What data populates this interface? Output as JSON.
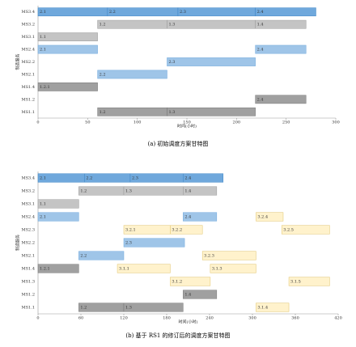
{
  "chart_data": [
    {
      "type": "gantt",
      "ylabel": "制造服务",
      "xlabel": "时间(小时)",
      "caption": "(a) 初始调度方案甘特图",
      "categories": [
        "MS3.4",
        "MS3.2",
        "MS3.1",
        "MS2.4",
        "MS2.2",
        "MS2.1",
        "MS1.4",
        "MS1.2",
        "MS1.1"
      ],
      "xlim": [
        0,
        300
      ],
      "xticks": [
        0,
        50,
        100,
        150,
        200,
        250,
        300
      ],
      "bars": [
        {
          "row": "MS3.4",
          "label": "2.1",
          "start": 0,
          "end": 70,
          "color": "#6fa8dc"
        },
        {
          "row": "MS3.4",
          "label": "2.2",
          "start": 70,
          "end": 141,
          "color": "#6fa8dc"
        },
        {
          "row": "MS3.4",
          "label": "2.3",
          "start": 141,
          "end": 219,
          "color": "#6fa8dc"
        },
        {
          "row": "MS3.4",
          "label": "2.4",
          "start": 219,
          "end": 280,
          "color": "#6fa8dc"
        },
        {
          "row": "MS3.2",
          "label": "1.2",
          "start": 60,
          "end": 130,
          "color": "#c4c4c4"
        },
        {
          "row": "MS3.2",
          "label": "1.3",
          "start": 130,
          "end": 219,
          "color": "#c4c4c4"
        },
        {
          "row": "MS3.2",
          "label": "1.4",
          "start": 219,
          "end": 270,
          "color": "#c4c4c4"
        },
        {
          "row": "MS3.1",
          "label": "1.1",
          "start": 0,
          "end": 60,
          "color": "#c4c4c4"
        },
        {
          "row": "MS2.4",
          "label": "2.1",
          "start": 0,
          "end": 60,
          "color": "#9fc5e8"
        },
        {
          "row": "MS2.4",
          "label": "2.4",
          "start": 219,
          "end": 270,
          "color": "#9fc5e8"
        },
        {
          "row": "MS2.2",
          "label": "2.3",
          "start": 130,
          "end": 219,
          "color": "#9fc5e8"
        },
        {
          "row": "MS2.1",
          "label": "2.2",
          "start": 60,
          "end": 130,
          "color": "#9fc5e8"
        },
        {
          "row": "MS1.4",
          "label": "1.2.1",
          "start": 0,
          "end": 60,
          "color": "#a0a0a0"
        },
        {
          "row": "MS1.2",
          "label": "2.4",
          "start": 219,
          "end": 270,
          "color": "#a0a0a0"
        },
        {
          "row": "MS1.1",
          "label": "1.2",
          "start": 60,
          "end": 130,
          "color": "#a0a0a0"
        },
        {
          "row": "MS1.1",
          "label": "1.3",
          "start": 130,
          "end": 219,
          "color": "#a0a0a0"
        }
      ]
    },
    {
      "type": "gantt",
      "ylabel": "制造服务",
      "xlabel": "时间(小时)",
      "caption": "(b) 基于 RS1 的修订后的调度方案甘特图",
      "categories": [
        "MS3.4",
        "MS3.2",
        "MS3.1",
        "MS2.4",
        "MS2.3",
        "MS2.2",
        "MS2.1",
        "MS1.4",
        "MS1.3",
        "MS1.2",
        "MS1.1"
      ],
      "xlim": [
        0,
        420
      ],
      "xticks": [
        0,
        60,
        120,
        180,
        240,
        300,
        360,
        420
      ],
      "bars": [
        {
          "row": "MS3.4",
          "label": "2.1",
          "start": 0,
          "end": 65,
          "color": "#6fa8dc"
        },
        {
          "row": "MS3.4",
          "label": "2.2",
          "start": 65,
          "end": 129,
          "color": "#6fa8dc"
        },
        {
          "row": "MS3.4",
          "label": "2.3",
          "start": 129,
          "end": 203,
          "color": "#6fa8dc"
        },
        {
          "row": "MS3.4",
          "label": "2.4",
          "start": 203,
          "end": 259,
          "color": "#6fa8dc"
        },
        {
          "row": "MS3.2",
          "label": "1.2",
          "start": 57,
          "end": 120,
          "color": "#c4c4c4"
        },
        {
          "row": "MS3.2",
          "label": "1.3",
          "start": 120,
          "end": 203,
          "color": "#c4c4c4"
        },
        {
          "row": "MS3.2",
          "label": "1.4",
          "start": 203,
          "end": 250,
          "color": "#c4c4c4"
        },
        {
          "row": "MS3.1",
          "label": "1.1",
          "start": 0,
          "end": 57,
          "color": "#c4c4c4"
        },
        {
          "row": "MS2.4",
          "label": "2.1",
          "start": 0,
          "end": 57,
          "color": "#9fc5e8"
        },
        {
          "row": "MS2.4",
          "label": "2.4",
          "start": 203,
          "end": 250,
          "color": "#9fc5e8"
        },
        {
          "row": "MS2.4",
          "label": "3.2.4",
          "start": 305,
          "end": 343,
          "color": "#fff2cc"
        },
        {
          "row": "MS2.3",
          "label": "3.2.1",
          "start": 120,
          "end": 185,
          "color": "#fff2cc"
        },
        {
          "row": "MS2.3",
          "label": "3.2.2",
          "start": 185,
          "end": 230,
          "color": "#fff2cc"
        },
        {
          "row": "MS2.3",
          "label": "3.2.5",
          "start": 341,
          "end": 408,
          "color": "#fff2cc"
        },
        {
          "row": "MS2.2",
          "label": "2.3",
          "start": 120,
          "end": 205,
          "color": "#9fc5e8"
        },
        {
          "row": "MS2.1",
          "label": "2.2",
          "start": 57,
          "end": 120,
          "color": "#9fc5e8"
        },
        {
          "row": "MS2.1",
          "label": "3.2.3",
          "start": 230,
          "end": 305,
          "color": "#fff2cc"
        },
        {
          "row": "MS1.4",
          "label": "1.2.1",
          "start": 0,
          "end": 57,
          "color": "#a0a0a0"
        },
        {
          "row": "MS1.4",
          "label": "3.1.1",
          "start": 111,
          "end": 185,
          "color": "#fff2cc"
        },
        {
          "row": "MS1.4",
          "label": "3.1.3",
          "start": 241,
          "end": 305,
          "color": "#fff2cc"
        },
        {
          "row": "MS1.3",
          "label": "3.1.2",
          "start": 185,
          "end": 241,
          "color": "#fff2cc"
        },
        {
          "row": "MS1.3",
          "label": "3.1.5",
          "start": 351,
          "end": 408,
          "color": "#fff2cc"
        },
        {
          "row": "MS1.2",
          "label": "1.4",
          "start": 203,
          "end": 250,
          "color": "#a0a0a0"
        },
        {
          "row": "MS1.1",
          "label": "1.2",
          "start": 57,
          "end": 120,
          "color": "#a0a0a0"
        },
        {
          "row": "MS1.1",
          "label": "1.3",
          "start": 120,
          "end": 203,
          "color": "#a0a0a0"
        },
        {
          "row": "MS1.1",
          "label": "3.1.4",
          "start": 305,
          "end": 351,
          "color": "#fff2cc"
        }
      ]
    }
  ]
}
